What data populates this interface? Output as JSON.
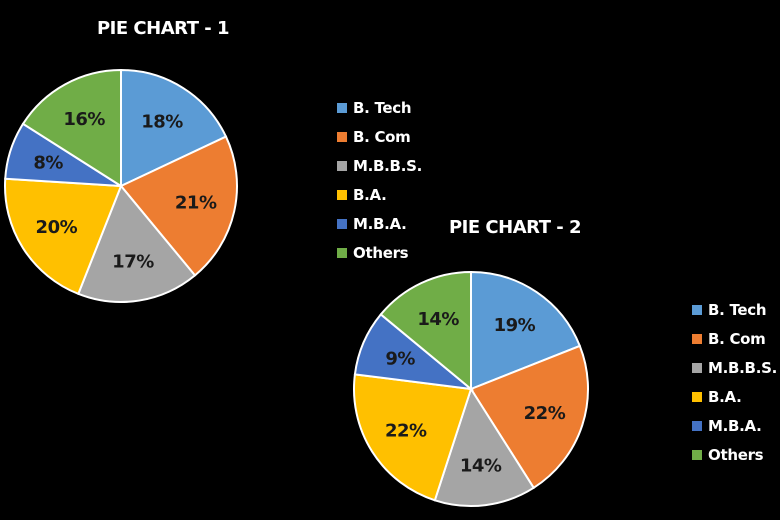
{
  "chart_data": [
    {
      "type": "pie",
      "title": "PIE CHART - 1",
      "categories": [
        "B. Tech",
        "B. Com",
        "M.B.B.S.",
        "B.A.",
        "M.B.A.",
        "Others"
      ],
      "values": [
        18,
        21,
        17,
        20,
        8,
        16
      ],
      "labels": [
        "18%",
        "21%",
        "17%",
        "20%",
        "8%",
        "16%"
      ],
      "colors": [
        "#5B9BD5",
        "#ED7D31",
        "#A5A5A5",
        "#FFC000",
        "#4472C4",
        "#70AD47"
      ],
      "legend_placement": "right"
    },
    {
      "type": "pie",
      "title": "PIE CHART - 2",
      "categories": [
        "B. Tech",
        "B. Com",
        "M.B.B.S.",
        "B.A.",
        "M.B.A.",
        "Others"
      ],
      "values": [
        19,
        22,
        14,
        22,
        9,
        14
      ],
      "labels": [
        "19%",
        "22%",
        "14%",
        "22%",
        "9%",
        "14%"
      ],
      "colors": [
        "#5B9BD5",
        "#ED7D31",
        "#A5A5A5",
        "#FFC000",
        "#4472C4",
        "#70AD47"
      ],
      "legend_placement": "right"
    }
  ]
}
